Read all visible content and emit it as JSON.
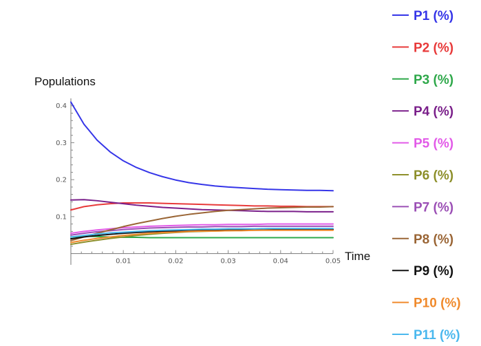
{
  "chart_data": {
    "type": "line",
    "xlabel": "Time",
    "ylabel": "Populations",
    "xlim": [
      0,
      0.05
    ],
    "ylim": [
      -0.01,
      0.42
    ],
    "x_ticks": [
      {
        "value": 0.01,
        "label": "0.01"
      },
      {
        "value": 0.02,
        "label": "0.02"
      },
      {
        "value": 0.03,
        "label": "0.03"
      },
      {
        "value": 0.04,
        "label": "0.04"
      },
      {
        "value": 0.05,
        "label": "0.05"
      }
    ],
    "y_ticks": [
      {
        "value": 0.1,
        "label": "0.1"
      },
      {
        "value": 0.2,
        "label": "0.2"
      },
      {
        "value": 0.3,
        "label": "0.3"
      },
      {
        "value": 0.4,
        "label": "0.4"
      }
    ],
    "grid": false,
    "legend_position": "right",
    "x": [
      0,
      0.0025,
      0.005,
      0.0075,
      0.01,
      0.0125,
      0.015,
      0.0175,
      0.02,
      0.0225,
      0.025,
      0.0275,
      0.03,
      0.0325,
      0.035,
      0.0375,
      0.04,
      0.0425,
      0.045,
      0.0475,
      0.05
    ],
    "series": [
      {
        "name": "P1 (%)",
        "color": "#3535e8",
        "values": [
          0.41,
          0.35,
          0.307,
          0.275,
          0.251,
          0.233,
          0.219,
          0.208,
          0.199,
          0.192,
          0.187,
          0.183,
          0.18,
          0.178,
          0.176,
          0.174,
          0.173,
          0.172,
          0.171,
          0.171,
          0.17
        ]
      },
      {
        "name": "P2 (%)",
        "color": "#e83a3a",
        "values": [
          0.118,
          0.127,
          0.132,
          0.135,
          0.137,
          0.137,
          0.137,
          0.136,
          0.135,
          0.134,
          0.133,
          0.132,
          0.131,
          0.13,
          0.129,
          0.129,
          0.128,
          0.128,
          0.127,
          0.127,
          0.127
        ]
      },
      {
        "name": "P3 (%)",
        "color": "#2ea84a",
        "values": [
          0.045,
          0.047,
          0.046,
          0.045,
          0.044,
          0.044,
          0.043,
          0.043,
          0.043,
          0.043,
          0.043,
          0.043,
          0.043,
          0.043,
          0.043,
          0.043,
          0.043,
          0.043,
          0.043,
          0.043,
          0.043
        ]
      },
      {
        "name": "P4 (%)",
        "color": "#7a1f8a",
        "values": [
          0.145,
          0.146,
          0.143,
          0.139,
          0.135,
          0.131,
          0.128,
          0.125,
          0.123,
          0.121,
          0.119,
          0.118,
          0.117,
          0.116,
          0.115,
          0.114,
          0.114,
          0.114,
          0.113,
          0.113,
          0.113
        ]
      },
      {
        "name": "P5 (%)",
        "color": "#e25ae8",
        "values": [
          0.055,
          0.06,
          0.064,
          0.067,
          0.07,
          0.072,
          0.074,
          0.075,
          0.076,
          0.077,
          0.078,
          0.078,
          0.079,
          0.079,
          0.079,
          0.08,
          0.08,
          0.08,
          0.08,
          0.08,
          0.08
        ]
      },
      {
        "name": "P6 (%)",
        "color": "#8d8f2a",
        "values": [
          0.025,
          0.031,
          0.036,
          0.041,
          0.045,
          0.049,
          0.052,
          0.055,
          0.057,
          0.059,
          0.06,
          0.061,
          0.062,
          0.063,
          0.063,
          0.064,
          0.064,
          0.064,
          0.065,
          0.065,
          0.065
        ]
      },
      {
        "name": "P7 (%)",
        "color": "#9b4fb5",
        "values": [
          0.05,
          0.055,
          0.059,
          0.062,
          0.065,
          0.067,
          0.069,
          0.07,
          0.071,
          0.072,
          0.072,
          0.073,
          0.073,
          0.073,
          0.074,
          0.074,
          0.074,
          0.074,
          0.074,
          0.074,
          0.074
        ]
      },
      {
        "name": "P8 (%)",
        "color": "#9a6535",
        "values": [
          0.035,
          0.045,
          0.055,
          0.064,
          0.073,
          0.081,
          0.088,
          0.095,
          0.101,
          0.106,
          0.11,
          0.114,
          0.117,
          0.119,
          0.121,
          0.123,
          0.124,
          0.125,
          0.126,
          0.126,
          0.127
        ]
      },
      {
        "name": "P9 (%)",
        "color": "#111111",
        "values": [
          0.04,
          0.045,
          0.049,
          0.052,
          0.055,
          0.057,
          0.059,
          0.06,
          0.061,
          0.062,
          0.063,
          0.063,
          0.064,
          0.064,
          0.064,
          0.064,
          0.065,
          0.065,
          0.065,
          0.065,
          0.065
        ]
      },
      {
        "name": "P10 (%)",
        "color": "#f08a2c",
        "values": [
          0.03,
          0.036,
          0.041,
          0.045,
          0.049,
          0.052,
          0.055,
          0.057,
          0.058,
          0.06,
          0.061,
          0.061,
          0.062,
          0.062,
          0.063,
          0.063,
          0.063,
          0.063,
          0.063,
          0.063,
          0.063
        ]
      },
      {
        "name": "P11 (%)",
        "color": "#4ab8ee",
        "values": [
          0.045,
          0.049,
          0.053,
          0.056,
          0.058,
          0.06,
          0.062,
          0.063,
          0.064,
          0.065,
          0.066,
          0.066,
          0.067,
          0.067,
          0.067,
          0.068,
          0.068,
          0.068,
          0.068,
          0.068,
          0.068
        ]
      }
    ]
  }
}
